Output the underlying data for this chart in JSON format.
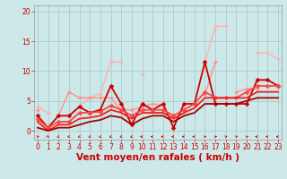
{
  "title": "",
  "xlabel": "Vent moyen/en rafales ( km/h )",
  "background_color": "#cce8e8",
  "grid_color": "#aacccc",
  "x": [
    0,
    1,
    2,
    3,
    4,
    5,
    6,
    7,
    8,
    9,
    10,
    11,
    12,
    13,
    14,
    15,
    16,
    17,
    18,
    19,
    20,
    21,
    22,
    23
  ],
  "lines": [
    {
      "y": [
        4.0,
        3.0,
        null,
        null,
        4.2,
        5.5,
        6.2,
        11.5,
        11.5,
        null,
        9.5,
        null,
        null,
        null,
        null,
        null,
        11.5,
        17.5,
        17.5,
        null,
        null,
        13.0,
        13.0,
        12.0
      ],
      "color": "#ffb0b0",
      "linewidth": 1.0,
      "marker": "D",
      "markersize": 2.0
    },
    {
      "y": [
        3.5,
        null,
        2.5,
        6.5,
        5.5,
        5.5,
        5.5,
        5.5,
        3.5,
        3.5,
        4.0,
        4.5,
        4.2,
        null,
        null,
        null,
        6.0,
        11.5,
        null,
        6.5,
        7.0,
        7.0,
        null,
        null
      ],
      "color": "#ff9090",
      "linewidth": 1.0,
      "marker": "D",
      "markersize": 2.0
    },
    {
      "y": [
        2.5,
        0.5,
        2.5,
        2.5,
        4.0,
        3.0,
        3.5,
        7.5,
        4.5,
        1.0,
        4.5,
        3.5,
        4.5,
        0.5,
        4.5,
        4.5,
        11.5,
        4.5,
        4.5,
        4.5,
        4.5,
        8.5,
        8.5,
        7.5
      ],
      "color": "#cc0000",
      "linewidth": 1.3,
      "marker": "D",
      "markersize": 2.5
    },
    {
      "y": [
        2.0,
        0.5,
        1.5,
        1.5,
        3.0,
        3.0,
        3.2,
        4.2,
        3.5,
        2.5,
        3.5,
        3.5,
        3.5,
        2.5,
        3.5,
        4.5,
        6.5,
        5.5,
        5.5,
        5.5,
        6.5,
        7.5,
        7.5,
        7.5
      ],
      "color": "#ff4444",
      "linewidth": 1.3,
      "marker": "D",
      "markersize": 2.5
    },
    {
      "y": [
        1.5,
        0.0,
        1.0,
        1.0,
        2.0,
        2.2,
        2.5,
        3.5,
        3.0,
        2.0,
        3.0,
        3.0,
        3.0,
        2.0,
        3.0,
        3.8,
        5.5,
        5.5,
        5.5,
        5.5,
        5.5,
        6.5,
        6.5,
        6.5
      ],
      "color": "#ee2222",
      "linewidth": 1.3,
      "marker": null,
      "markersize": 0
    },
    {
      "y": [
        0.5,
        0.0,
        0.5,
        0.5,
        1.0,
        1.5,
        1.8,
        2.5,
        2.2,
        1.0,
        2.0,
        2.5,
        2.5,
        1.5,
        2.5,
        3.0,
        4.5,
        4.5,
        4.5,
        4.5,
        5.0,
        5.5,
        5.5,
        5.5
      ],
      "color": "#aa0000",
      "linewidth": 1.3,
      "marker": null,
      "markersize": 0
    }
  ],
  "xlim": [
    -0.3,
    23.3
  ],
  "ylim": [
    -1.5,
    21
  ],
  "yticks": [
    0,
    5,
    10,
    15,
    20
  ],
  "xticks": [
    0,
    1,
    2,
    3,
    4,
    5,
    6,
    7,
    8,
    9,
    10,
    11,
    12,
    13,
    14,
    15,
    16,
    17,
    18,
    19,
    20,
    21,
    22,
    23
  ],
  "tick_color": "#cc0000",
  "label_color": "#cc0000",
  "xlabel_fontsize": 7.5,
  "tick_fontsize": 5.5,
  "arrow_angles": [
    45,
    -60,
    -135,
    -135,
    -135,
    -135,
    -135,
    -135,
    -135,
    -135,
    180,
    180,
    180,
    180,
    180,
    180,
    45,
    45,
    45,
    45,
    45,
    180,
    180,
    180
  ]
}
